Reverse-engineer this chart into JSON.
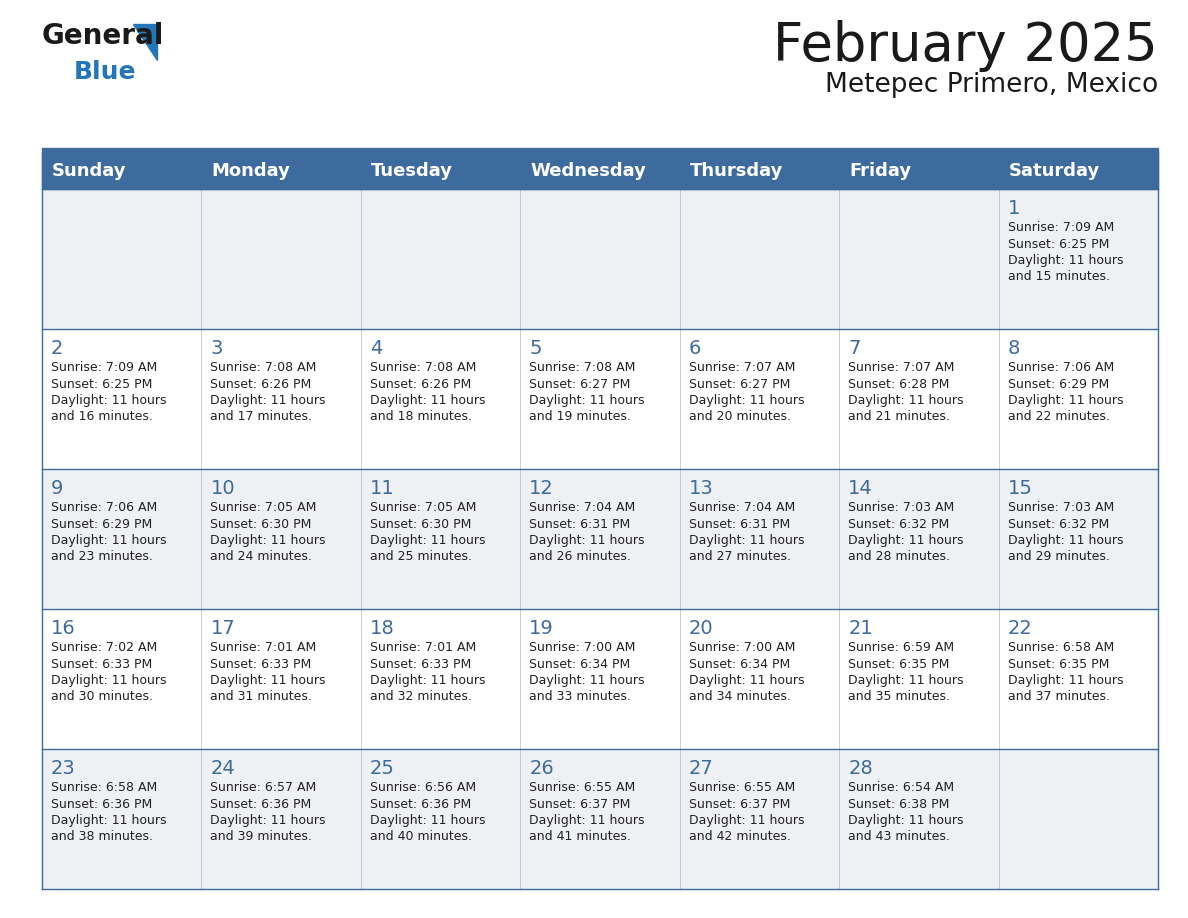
{
  "title": "February 2025",
  "subtitle": "Metepec Primero, Mexico",
  "header_bg": "#3d6b9e",
  "header_text_color": "#ffffff",
  "cell_bg_odd": "#eef0f3",
  "cell_bg_even": "#ffffff",
  "border_color": "#3d6b9e",
  "day_number_color": "#3d6b9e",
  "cell_text_color": "#222222",
  "days_of_week": [
    "Sunday",
    "Monday",
    "Tuesday",
    "Wednesday",
    "Thursday",
    "Friday",
    "Saturday"
  ],
  "calendar": [
    [
      null,
      null,
      null,
      null,
      null,
      null,
      1
    ],
    [
      2,
      3,
      4,
      5,
      6,
      7,
      8
    ],
    [
      9,
      10,
      11,
      12,
      13,
      14,
      15
    ],
    [
      16,
      17,
      18,
      19,
      20,
      21,
      22
    ],
    [
      23,
      24,
      25,
      26,
      27,
      28,
      null
    ]
  ],
  "cell_data": {
    "1": {
      "sunrise": "7:09 AM",
      "sunset": "6:25 PM",
      "daylight_hours": 11,
      "daylight_minutes": 15
    },
    "2": {
      "sunrise": "7:09 AM",
      "sunset": "6:25 PM",
      "daylight_hours": 11,
      "daylight_minutes": 16
    },
    "3": {
      "sunrise": "7:08 AM",
      "sunset": "6:26 PM",
      "daylight_hours": 11,
      "daylight_minutes": 17
    },
    "4": {
      "sunrise": "7:08 AM",
      "sunset": "6:26 PM",
      "daylight_hours": 11,
      "daylight_minutes": 18
    },
    "5": {
      "sunrise": "7:08 AM",
      "sunset": "6:27 PM",
      "daylight_hours": 11,
      "daylight_minutes": 19
    },
    "6": {
      "sunrise": "7:07 AM",
      "sunset": "6:27 PM",
      "daylight_hours": 11,
      "daylight_minutes": 20
    },
    "7": {
      "sunrise": "7:07 AM",
      "sunset": "6:28 PM",
      "daylight_hours": 11,
      "daylight_minutes": 21
    },
    "8": {
      "sunrise": "7:06 AM",
      "sunset": "6:29 PM",
      "daylight_hours": 11,
      "daylight_minutes": 22
    },
    "9": {
      "sunrise": "7:06 AM",
      "sunset": "6:29 PM",
      "daylight_hours": 11,
      "daylight_minutes": 23
    },
    "10": {
      "sunrise": "7:05 AM",
      "sunset": "6:30 PM",
      "daylight_hours": 11,
      "daylight_minutes": 24
    },
    "11": {
      "sunrise": "7:05 AM",
      "sunset": "6:30 PM",
      "daylight_hours": 11,
      "daylight_minutes": 25
    },
    "12": {
      "sunrise": "7:04 AM",
      "sunset": "6:31 PM",
      "daylight_hours": 11,
      "daylight_minutes": 26
    },
    "13": {
      "sunrise": "7:04 AM",
      "sunset": "6:31 PM",
      "daylight_hours": 11,
      "daylight_minutes": 27
    },
    "14": {
      "sunrise": "7:03 AM",
      "sunset": "6:32 PM",
      "daylight_hours": 11,
      "daylight_minutes": 28
    },
    "15": {
      "sunrise": "7:03 AM",
      "sunset": "6:32 PM",
      "daylight_hours": 11,
      "daylight_minutes": 29
    },
    "16": {
      "sunrise": "7:02 AM",
      "sunset": "6:33 PM",
      "daylight_hours": 11,
      "daylight_minutes": 30
    },
    "17": {
      "sunrise": "7:01 AM",
      "sunset": "6:33 PM",
      "daylight_hours": 11,
      "daylight_minutes": 31
    },
    "18": {
      "sunrise": "7:01 AM",
      "sunset": "6:33 PM",
      "daylight_hours": 11,
      "daylight_minutes": 32
    },
    "19": {
      "sunrise": "7:00 AM",
      "sunset": "6:34 PM",
      "daylight_hours": 11,
      "daylight_minutes": 33
    },
    "20": {
      "sunrise": "7:00 AM",
      "sunset": "6:34 PM",
      "daylight_hours": 11,
      "daylight_minutes": 34
    },
    "21": {
      "sunrise": "6:59 AM",
      "sunset": "6:35 PM",
      "daylight_hours": 11,
      "daylight_minutes": 35
    },
    "22": {
      "sunrise": "6:58 AM",
      "sunset": "6:35 PM",
      "daylight_hours": 11,
      "daylight_minutes": 37
    },
    "23": {
      "sunrise": "6:58 AM",
      "sunset": "6:36 PM",
      "daylight_hours": 11,
      "daylight_minutes": 38
    },
    "24": {
      "sunrise": "6:57 AM",
      "sunset": "6:36 PM",
      "daylight_hours": 11,
      "daylight_minutes": 39
    },
    "25": {
      "sunrise": "6:56 AM",
      "sunset": "6:36 PM",
      "daylight_hours": 11,
      "daylight_minutes": 40
    },
    "26": {
      "sunrise": "6:55 AM",
      "sunset": "6:37 PM",
      "daylight_hours": 11,
      "daylight_minutes": 41
    },
    "27": {
      "sunrise": "6:55 AM",
      "sunset": "6:37 PM",
      "daylight_hours": 11,
      "daylight_minutes": 42
    },
    "28": {
      "sunrise": "6:54 AM",
      "sunset": "6:38 PM",
      "daylight_hours": 11,
      "daylight_minutes": 43
    }
  }
}
